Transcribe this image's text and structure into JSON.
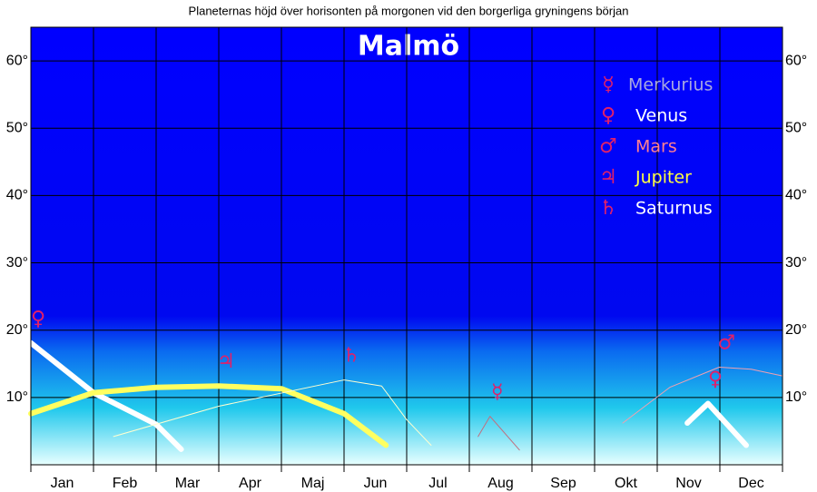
{
  "chart_data": {
    "type": "line",
    "title": "Planeternas höjd över horisonten på morgonen vid den borgerliga gryningens början",
    "subtitle": "Malmö",
    "categories": [
      "Jan",
      "Feb",
      "Mar",
      "Apr",
      "Maj",
      "Jun",
      "Jul",
      "Aug",
      "Sep",
      "Okt",
      "Nov",
      "Dec"
    ],
    "xlim": [
      0,
      12
    ],
    "ylim": [
      0,
      65
    ],
    "yticks": [
      {
        "value": 10,
        "label": "10°"
      },
      {
        "value": 20,
        "label": "20°"
      },
      {
        "value": 30,
        "label": "30°"
      },
      {
        "value": 40,
        "label": "40°"
      },
      {
        "value": 50,
        "label": "50°"
      },
      {
        "value": 60,
        "label": "60°"
      }
    ],
    "grid": true,
    "series": [
      {
        "name": "Merkurius",
        "symbol": "☿",
        "color": "#c07080",
        "legend_color": "#a8a8e0",
        "line_width": 1,
        "x": [
          7.14,
          7.33,
          7.8
        ],
        "values": [
          4.2,
          7.2,
          2.2
        ]
      },
      {
        "name": "Venus",
        "symbol": "♀",
        "color": "#ffffff",
        "legend_color": "#ffffff",
        "line_width": 6,
        "x": [
          0,
          1.0,
          2.0,
          2.4,
          null,
          10.48,
          10.81,
          11.42
        ],
        "values": [
          18.1,
          10.7,
          6,
          2.3,
          null,
          6.2,
          9.1,
          2.9
        ]
      },
      {
        "name": "Mars",
        "symbol": "♂",
        "color": "#f0a0b0",
        "legend_color": "#ff8090",
        "line_width": 1,
        "x": [
          9.45,
          10.2,
          10.99,
          11.5,
          12
        ],
        "values": [
          6.2,
          11.5,
          14.5,
          14.2,
          13.2
        ]
      },
      {
        "name": "Jupiter",
        "symbol": "♃",
        "color": "#ffff60",
        "legend_color": "#ffff40",
        "line_width": 6,
        "x": [
          0,
          1.0,
          2.0,
          3.0,
          4.0,
          5.0,
          5.67
        ],
        "values": [
          7.6,
          10.7,
          11.5,
          11.7,
          11.3,
          7.6,
          2.9
        ]
      },
      {
        "name": "Saturnus",
        "symbol": "♄",
        "color": "#ffffd0",
        "legend_color": "#ffffff",
        "line_width": 1,
        "x": [
          1.32,
          3.0,
          5.0,
          5.6,
          6.0,
          6.39
        ],
        "values": [
          4.2,
          8.7,
          12.6,
          11.7,
          6.7,
          2.9
        ]
      }
    ]
  }
}
